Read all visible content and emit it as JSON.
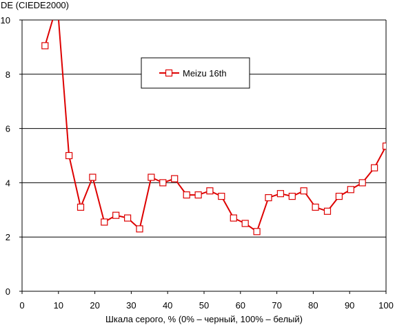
{
  "chart_data": {
    "type": "line",
    "title": "",
    "ylabel": "DE (CIEDE2000)",
    "xlabel": "Шкала серого, % (0% – черный, 100% – белый)",
    "xlim": [
      0,
      100
    ],
    "ylim": [
      0,
      10
    ],
    "xticks": [
      "0",
      "10",
      "20",
      "30",
      "40",
      "50",
      "60",
      "70",
      "80",
      "90",
      "100"
    ],
    "yticks": [
      "0",
      "2",
      "4",
      "6",
      "8",
      "10"
    ],
    "grid": "horizontal",
    "legend_position": "top-center",
    "series": [
      {
        "name": "Meizu 16th",
        "color": "#dd0000",
        "marker": "square",
        "x": [
          6.3,
          9.7,
          12.9,
          16.1,
          19.4,
          22.6,
          25.8,
          29.0,
          32.3,
          35.5,
          38.7,
          41.9,
          45.2,
          48.4,
          51.6,
          54.8,
          58.1,
          61.3,
          64.5,
          67.7,
          71.0,
          74.2,
          77.4,
          80.6,
          83.9,
          87.1,
          90.3,
          93.5,
          96.8,
          100.0
        ],
        "y": [
          9.05,
          10.6,
          5.0,
          3.1,
          4.2,
          2.55,
          2.8,
          2.7,
          2.3,
          4.2,
          4.0,
          4.15,
          3.55,
          3.55,
          3.7,
          3.5,
          2.7,
          2.5,
          2.2,
          3.45,
          3.6,
          3.5,
          3.7,
          3.1,
          2.95,
          3.5,
          3.75,
          4.0,
          4.55,
          5.35
        ]
      }
    ]
  }
}
